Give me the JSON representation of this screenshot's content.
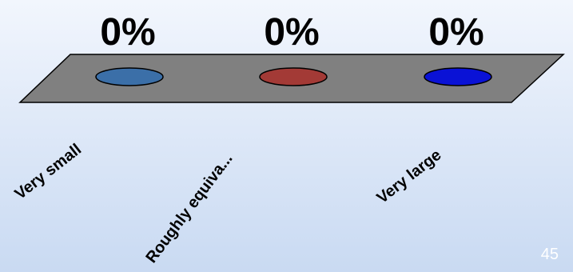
{
  "chart_data": {
    "type": "bar",
    "categories": [
      "Very small",
      "Roughly equiva...",
      "Very large"
    ],
    "values": [
      0,
      0,
      0
    ],
    "value_labels": [
      "0%",
      "0%",
      "0%"
    ],
    "colors": [
      "#3b6fa8",
      "#a33a36",
      "#0a12d6"
    ],
    "floor_color": "#808080",
    "ylim": [
      0,
      100
    ],
    "grid": false
  },
  "page": {
    "number": "45"
  }
}
